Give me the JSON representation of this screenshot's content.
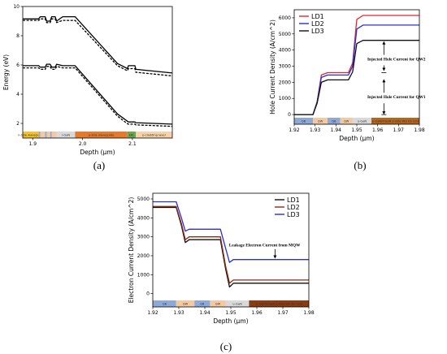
{
  "panels": {
    "a": {
      "label": "(a)"
    },
    "b": {
      "label": "(b)"
    },
    "c": {
      "label": "(c)"
    }
  },
  "chart_data": [
    {
      "id": "a",
      "type": "line",
      "title": "",
      "xlabel": "Depth (μm)",
      "ylabel": "Energy (eV)",
      "xlim": [
        1.88,
        2.18
      ],
      "ylim": [
        1,
        10
      ],
      "xticks": [
        1.9,
        2.0,
        2.1
      ],
      "xtick_labels": [
        "1.9",
        "2.0",
        "2.1"
      ],
      "yticks": [
        2,
        4,
        6,
        8,
        10
      ],
      "ytick_labels": [
        "2",
        "4",
        "6",
        "8",
        "10"
      ],
      "series": [
        {
          "style": "solid",
          "x": [
            1.88,
            1.912,
            1.915,
            1.925,
            1.928,
            1.935,
            1.938,
            1.945,
            1.948,
            1.96,
            1.985,
            2.07,
            2.09,
            2.092,
            2.105,
            2.107,
            2.18
          ],
          "y": [
            9.15,
            9.15,
            9.3,
            9.3,
            9.0,
            9.0,
            9.3,
            9.3,
            9.0,
            9.3,
            9.3,
            6.1,
            5.75,
            5.95,
            5.95,
            5.7,
            5.45
          ]
        },
        {
          "style": "dashed",
          "x": [
            1.88,
            1.912,
            1.915,
            1.925,
            1.928,
            1.935,
            1.938,
            1.945,
            1.948,
            1.96,
            1.985,
            2.07,
            2.09,
            2.092,
            2.105,
            2.107,
            2.18
          ],
          "y": [
            9.05,
            9.05,
            9.15,
            9.15,
            8.9,
            8.9,
            9.15,
            9.15,
            8.9,
            9.05,
            9.05,
            5.95,
            5.6,
            5.75,
            5.75,
            5.5,
            5.25
          ]
        },
        {
          "style": "solid",
          "x": [
            1.88,
            1.912,
            1.915,
            1.925,
            1.928,
            1.935,
            1.938,
            1.945,
            1.948,
            1.96,
            1.985,
            2.07,
            2.09,
            2.092,
            2.105,
            2.107,
            2.18
          ],
          "y": [
            5.95,
            5.95,
            5.85,
            5.85,
            6.05,
            6.05,
            5.85,
            5.85,
            6.05,
            5.95,
            5.95,
            2.65,
            2.15,
            2.1,
            2.1,
            2.05,
            1.95
          ]
        },
        {
          "style": "dashed",
          "x": [
            1.88,
            1.912,
            1.915,
            1.925,
            1.928,
            1.935,
            1.938,
            1.945,
            1.948,
            1.96,
            1.985,
            2.07,
            2.09,
            2.092,
            2.105,
            2.107,
            2.18
          ],
          "y": [
            5.8,
            5.8,
            5.7,
            5.7,
            5.9,
            5.9,
            5.7,
            5.7,
            5.9,
            5.8,
            5.8,
            2.5,
            1.98,
            1.95,
            1.95,
            1.9,
            1.8
          ]
        }
      ],
      "regions": [
        {
          "x0": 1.88,
          "x1": 1.912,
          "color": "#f2c230",
          "label": "n-side waveguide"
        },
        {
          "x0": 1.912,
          "x1": 1.915,
          "color": "#8ea9d6",
          "label": ""
        },
        {
          "x0": 1.915,
          "x1": 1.925,
          "color": "#f2c9a1",
          "label": ""
        },
        {
          "x0": 1.925,
          "x1": 1.928,
          "color": "#8ea9d6",
          "label": ""
        },
        {
          "x0": 1.928,
          "x1": 1.935,
          "color": "#f2c9a1",
          "label": ""
        },
        {
          "x0": 1.935,
          "x1": 1.938,
          "color": "#8ea9d6",
          "label": ""
        },
        {
          "x0": 1.938,
          "x1": 1.948,
          "color": "#f2c9a1",
          "label": ""
        },
        {
          "x0": 1.948,
          "x1": 1.985,
          "color": "#d9d9d9",
          "label": "i-GaN"
        },
        {
          "x0": 1.985,
          "x1": 2.09,
          "color": "#e27b2e",
          "label": "p-side waveguide"
        },
        {
          "x0": 2.09,
          "x1": 2.107,
          "color": "#6aa84f",
          "label": "EBL"
        },
        {
          "x0": 2.107,
          "x1": 2.18,
          "color": "#f6d2a8",
          "label": "p-cladding layer"
        }
      ]
    },
    {
      "id": "b",
      "type": "line",
      "title": "",
      "xlabel": "Depth (μm)",
      "ylabel": "Hole Current Density (A/cm^2)",
      "xlim": [
        1.92,
        1.98
      ],
      "ylim": [
        -600,
        6500
      ],
      "xticks": [
        1.92,
        1.93,
        1.94,
        1.95,
        1.96,
        1.97,
        1.98
      ],
      "xtick_labels": [
        "1.92",
        "1.93",
        "1.94",
        "1.95",
        "1.96",
        "1.97",
        "1.98"
      ],
      "yticks": [
        0,
        1000,
        2000,
        3000,
        4000,
        5000,
        6000
      ],
      "ytick_labels": [
        "0",
        "1000",
        "2000",
        "3000",
        "4000",
        "5000",
        "6000"
      ],
      "legend": "top-left",
      "series": [
        {
          "name": "LD1",
          "color": "#e8232a",
          "x": [
            1.92,
            1.929,
            1.931,
            1.933,
            1.936,
            1.946,
            1.948,
            1.95,
            1.953,
            1.98
          ],
          "y": [
            0,
            0,
            800,
            2450,
            2600,
            2600,
            3200,
            5900,
            6150,
            6150
          ]
        },
        {
          "name": "LD2",
          "color": "#2b2fd4",
          "x": [
            1.92,
            1.929,
            1.931,
            1.933,
            1.936,
            1.946,
            1.948,
            1.95,
            1.953,
            1.98
          ],
          "y": [
            0,
            0,
            780,
            2300,
            2450,
            2450,
            3000,
            5300,
            5550,
            5550
          ]
        },
        {
          "name": "LD3",
          "color": "#111111",
          "x": [
            1.92,
            1.929,
            1.931,
            1.933,
            1.936,
            1.946,
            1.948,
            1.95,
            1.953,
            1.98
          ],
          "y": [
            0,
            0,
            700,
            2000,
            2150,
            2150,
            2650,
            4400,
            4600,
            4600
          ]
        }
      ],
      "annotations": [
        {
          "text": "Injected Hole Current for QW2",
          "x": 1.969,
          "y": 3350
        },
        {
          "text": "Injected Hole Current for QW1",
          "x": 1.969,
          "y": 1000
        }
      ],
      "regions": [
        {
          "x0": 1.92,
          "x1": 1.929,
          "color": "#8ea9d6",
          "label": "QB"
        },
        {
          "x0": 1.929,
          "x1": 1.936,
          "color": "#f2c9a1",
          "label": "QW"
        },
        {
          "x0": 1.936,
          "x1": 1.942,
          "color": "#8ea9d6",
          "label": "QB"
        },
        {
          "x0": 1.942,
          "x1": 1.948,
          "color": "#f2c9a1",
          "label": "QW"
        },
        {
          "x0": 1.948,
          "x1": 1.957,
          "color": "#d9d9d9",
          "label": "u-GaN"
        },
        {
          "x0": 1.957,
          "x1": 1.98,
          "color": "#b5651d",
          "label": "p-GaN/InGaN p-side WG for LD3"
        }
      ]
    },
    {
      "id": "c",
      "type": "line",
      "title": "",
      "xlabel": "Depth (μm)",
      "ylabel": "Electron Current Density (A/cm^2)",
      "xlim": [
        1.92,
        1.98
      ],
      "ylim": [
        -700,
        5300
      ],
      "xticks": [
        1.92,
        1.93,
        1.94,
        1.95,
        1.96,
        1.97,
        1.98
      ],
      "xtick_labels": [
        "1.92",
        "1.93",
        "1.94",
        "1.95",
        "1.96",
        "1.97",
        "1.98"
      ],
      "yticks": [
        0,
        1000,
        2000,
        3000,
        4000,
        5000
      ],
      "ytick_labels": [
        "0",
        "1000",
        "2000",
        "3000",
        "4000",
        "5000"
      ],
      "legend": "top-right",
      "series": [
        {
          "name": "LD1",
          "color": "#111111",
          "x": [
            1.92,
            1.929,
            1.931,
            1.9325,
            1.934,
            1.946,
            1.948,
            1.9495,
            1.951,
            1.98
          ],
          "y": [
            4550,
            4550,
            3600,
            2700,
            2850,
            2850,
            1300,
            350,
            550,
            550
          ]
        },
        {
          "name": "LD2",
          "color": "#8b2b12",
          "x": [
            1.92,
            1.929,
            1.931,
            1.9325,
            1.934,
            1.946,
            1.948,
            1.9495,
            1.951,
            1.98
          ],
          "y": [
            4600,
            4600,
            3700,
            2850,
            3000,
            3000,
            1450,
            550,
            720,
            720
          ]
        },
        {
          "name": "LD3",
          "color": "#2b2fd4",
          "x": [
            1.92,
            1.929,
            1.931,
            1.9325,
            1.934,
            1.946,
            1.948,
            1.9495,
            1.951,
            1.98
          ],
          "y": [
            4850,
            4850,
            4000,
            3300,
            3400,
            3400,
            2400,
            1650,
            1800,
            1800
          ]
        }
      ],
      "annotations": [
        {
          "text": "Leakage Electron Current from MQW",
          "x": 1.963,
          "y": 2500
        }
      ],
      "regions": [
        {
          "x0": 1.92,
          "x1": 1.929,
          "color": "#8ea9d6",
          "label": "QB"
        },
        {
          "x0": 1.929,
          "x1": 1.936,
          "color": "#f2c9a1",
          "label": "QW"
        },
        {
          "x0": 1.936,
          "x1": 1.942,
          "color": "#8ea9d6",
          "label": "QB"
        },
        {
          "x0": 1.942,
          "x1": 1.948,
          "color": "#f2c9a1",
          "label": "QW"
        },
        {
          "x0": 1.948,
          "x1": 1.957,
          "color": "#d9d9d9",
          "label": "u-GaN"
        },
        {
          "x0": 1.957,
          "x1": 1.98,
          "color": "#8a3d12",
          "label": "p-GaN/InGaN p-side WG for LD3"
        }
      ]
    }
  ]
}
